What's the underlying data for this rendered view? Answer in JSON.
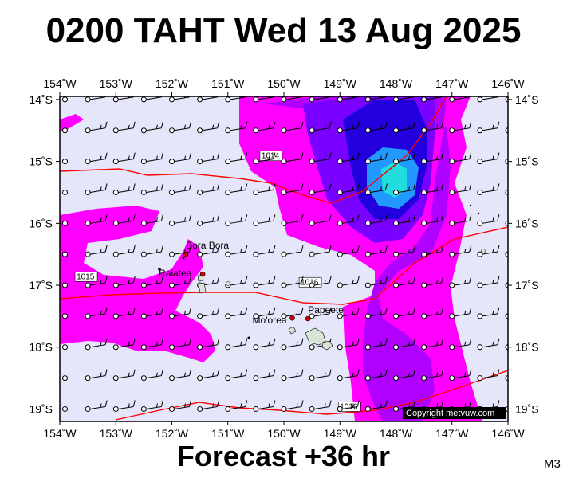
{
  "header": {
    "title": "0200 TAHT Wed 13 Aug 2025"
  },
  "footer": {
    "forecast": "Forecast +36 hr",
    "model": "M3"
  },
  "map": {
    "lon_range": [
      -154,
      -146
    ],
    "lat_range": [
      -19.2,
      -13.95
    ],
    "x_ticks": [
      "154˚W",
      "153˚W",
      "152˚W",
      "151˚W",
      "150˚W",
      "149˚W",
      "148˚W",
      "147˚W",
      "146˚W"
    ],
    "y_ticks": [
      "14˚S",
      "15˚S",
      "16˚S",
      "17˚S",
      "18˚S",
      "19˚S"
    ],
    "isobar_labels": [
      {
        "text": "1014",
        "lon": -150.4,
        "lat": -14.95
      },
      {
        "text": "1015",
        "lon": -153.7,
        "lat": -16.9
      },
      {
        "text": "1016",
        "lon": -149.7,
        "lat": -16.99
      },
      {
        "text": "1016",
        "lon": -149.0,
        "lat": -19.0
      }
    ],
    "places": [
      {
        "name": "Bora Bora",
        "lon": -151.75,
        "lat": -16.5
      },
      {
        "name": "Raiatea",
        "lon": -151.45,
        "lat": -16.82
      },
      {
        "name": "Mo'orea",
        "lon": -149.85,
        "lat": -17.53
      },
      {
        "name": "Papeete",
        "lon": -149.57,
        "lat": -17.54
      }
    ],
    "colors": {
      "background": "#e6e6fa",
      "rain_light": "#ff00ff",
      "rain_medium": "#b000ff",
      "rain_heavy": "#7a00ff",
      "rain_very_heavy": "#2200dd",
      "rain_core": "#2299ff",
      "rain_peak": "#22dddd",
      "isobar": "#ff0000",
      "land": "#d8e4d8"
    },
    "copyright": "Copyright metvuw.com"
  }
}
